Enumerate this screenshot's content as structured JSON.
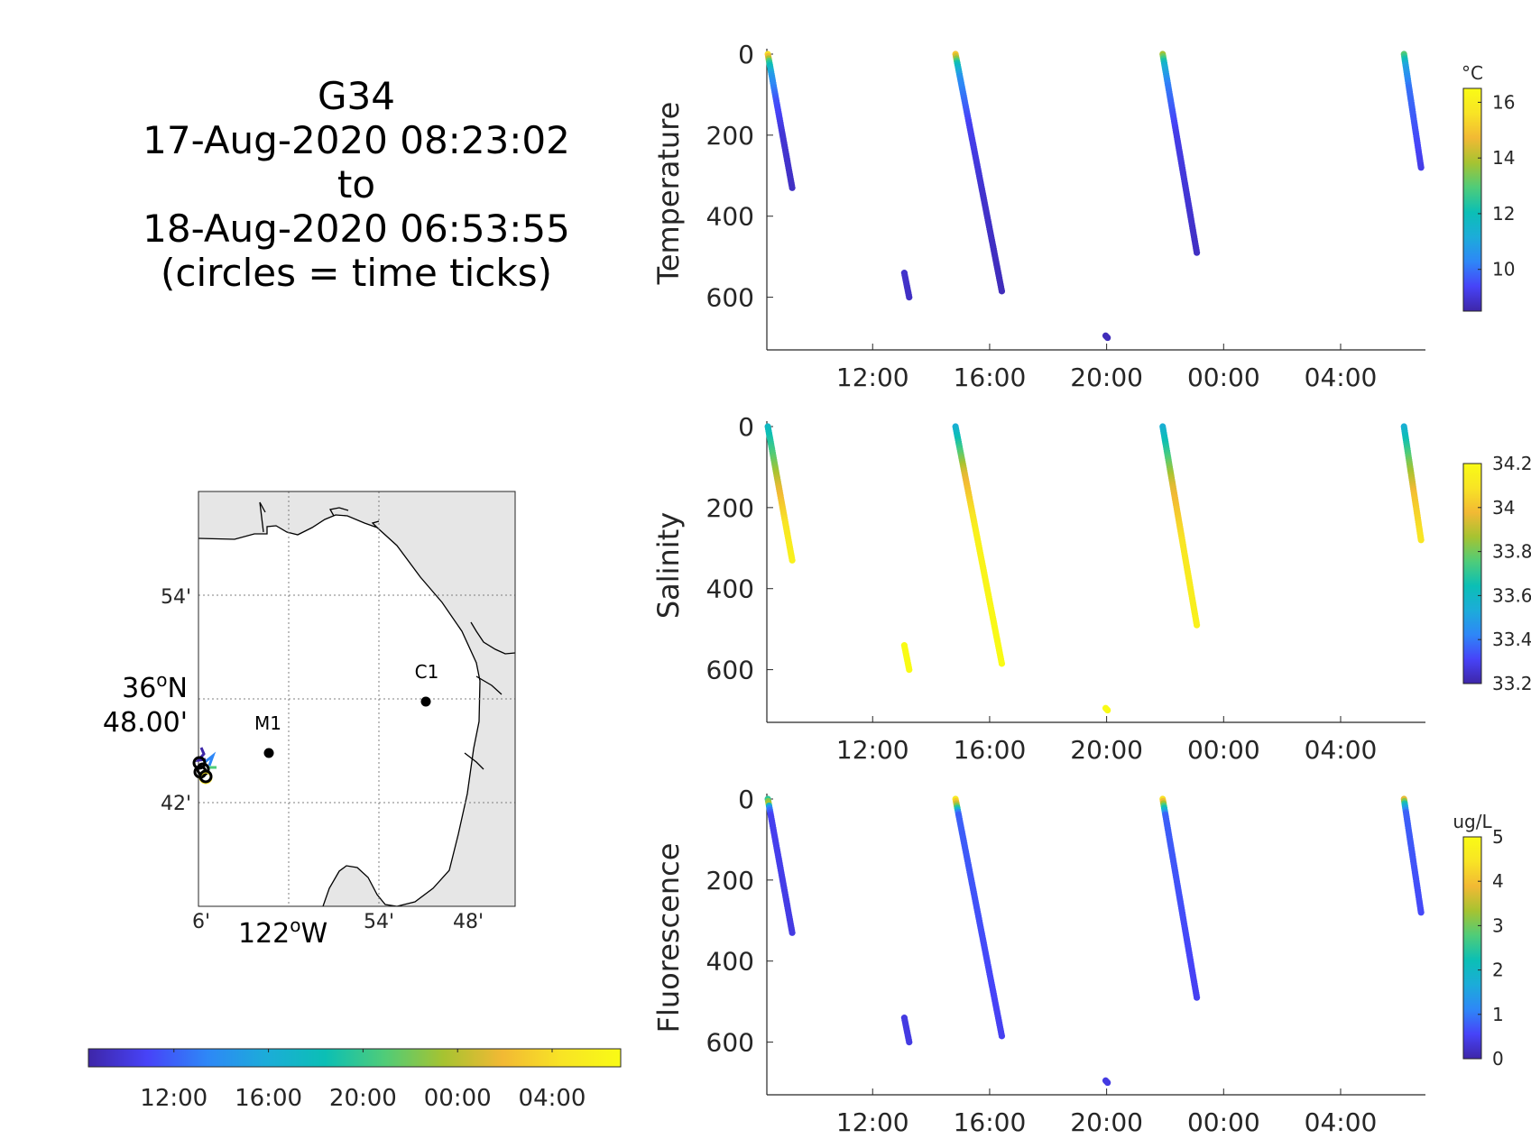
{
  "title": {
    "glider": "G34",
    "start": "17-Aug-2020 08:23:02",
    "to": "to",
    "end": "18-Aug-2020 06:53:55",
    "note": "(circles = time ticks)"
  },
  "map": {
    "lat_label_deg": "36",
    "lat_label_hemi": "N",
    "lat_label_min": "48.00'",
    "lon_label_deg": "122",
    "lon_label_hemi": "W",
    "lat_ticks": [
      "54'",
      "42'"
    ],
    "lon_ticks": [
      "6'",
      "54'",
      "48'"
    ],
    "stations": [
      {
        "name": "M1"
      },
      {
        "name": "C1"
      }
    ],
    "colors": {
      "land": "#e6e6e6",
      "water": "#ffffff",
      "coast": "#000000",
      "grid": "#7f7f7f"
    }
  },
  "time_colorbar": {
    "ticks": [
      "12:00",
      "16:00",
      "20:00",
      "00:00",
      "04:00"
    ]
  },
  "colormap": [
    "#3e26a8",
    "#4743f8",
    "#2e87f7",
    "#1cacd9",
    "#0bbfb5",
    "#4fcc79",
    "#a6c331",
    "#f2b934",
    "#f8e425",
    "#f9fb15"
  ],
  "chart_data": [
    {
      "type": "scatter",
      "ylabel": "Temperature",
      "x_ticks": [
        "12:00",
        "16:00",
        "20:00",
        "00:00",
        "04:00"
      ],
      "y_ticks": [
        "0",
        "200",
        "400",
        "600"
      ],
      "ylim": [
        0,
        730
      ],
      "y_reversed": true,
      "colorbar": {
        "unit": "°C",
        "ticks": [
          "10",
          "12",
          "14",
          "16"
        ],
        "range": [
          8.5,
          16.5
        ]
      },
      "profiles": [
        {
          "t0": "08:25",
          "t1": "09:15",
          "d0": 0,
          "d1": 330,
          "stops": [
            [
              0,
              15.5
            ],
            [
              0.06,
              12.5
            ],
            [
              0.15,
              10.8
            ],
            [
              0.35,
              9.6
            ],
            [
              0.6,
              9.0
            ],
            [
              1,
              8.8
            ]
          ]
        },
        {
          "t0": "13:05",
          "t1": "13:15",
          "d0": 540,
          "d1": 600,
          "stops": [
            [
              0,
              8.9
            ],
            [
              1,
              8.8
            ]
          ]
        },
        {
          "t0": "14:50",
          "t1": "16:25",
          "d0": 0,
          "d1": 585,
          "stops": [
            [
              0,
              15.0
            ],
            [
              0.04,
              12.0
            ],
            [
              0.1,
              10.5
            ],
            [
              0.3,
              9.3
            ],
            [
              0.6,
              8.9
            ],
            [
              1,
              8.7
            ]
          ]
        },
        {
          "t0": "19:58",
          "t1": "20:02",
          "d0": 695,
          "d1": 700,
          "stops": [
            [
              0,
              8.7
            ],
            [
              1,
              8.7
            ]
          ]
        },
        {
          "t0": "21:55",
          "t1": "23:05",
          "d0": 0,
          "d1": 490,
          "stops": [
            [
              0,
              13.8
            ],
            [
              0.05,
              11.5
            ],
            [
              0.15,
              10.2
            ],
            [
              0.4,
              9.2
            ],
            [
              1,
              8.8
            ]
          ]
        },
        {
          "t0": "06:10",
          "t1": "06:45",
          "d0": 0,
          "d1": 280,
          "stops": [
            [
              0,
              13.0
            ],
            [
              0.1,
              11.0
            ],
            [
              0.3,
              10.0
            ],
            [
              1,
              9.2
            ]
          ]
        }
      ]
    },
    {
      "type": "scatter",
      "ylabel": "Salinity",
      "x_ticks": [
        "12:00",
        "16:00",
        "20:00",
        "00:00",
        "04:00"
      ],
      "y_ticks": [
        "0",
        "200",
        "400",
        "600"
      ],
      "ylim": [
        0,
        730
      ],
      "y_reversed": true,
      "colorbar": {
        "unit": "",
        "ticks": [
          "34.2",
          "34",
          "33.8",
          "33.6",
          "33.4",
          "33.2"
        ],
        "range": [
          33.2,
          34.2
        ]
      },
      "profiles": [
        {
          "t0": "08:25",
          "t1": "09:15",
          "d0": 0,
          "d1": 330,
          "stops": [
            [
              0,
              33.6
            ],
            [
              0.2,
              33.75
            ],
            [
              0.45,
              33.95
            ],
            [
              0.75,
              34.1
            ],
            [
              1,
              34.15
            ]
          ]
        },
        {
          "t0": "13:05",
          "t1": "13:15",
          "d0": 540,
          "d1": 600,
          "stops": [
            [
              0,
              34.2
            ],
            [
              1,
              34.2
            ]
          ]
        },
        {
          "t0": "14:50",
          "t1": "16:25",
          "d0": 0,
          "d1": 585,
          "stops": [
            [
              0,
              33.55
            ],
            [
              0.08,
              33.7
            ],
            [
              0.2,
              33.95
            ],
            [
              0.45,
              34.15
            ],
            [
              1,
              34.2
            ]
          ]
        },
        {
          "t0": "19:58",
          "t1": "20:02",
          "d0": 695,
          "d1": 700,
          "stops": [
            [
              0,
              34.2
            ],
            [
              1,
              34.2
            ]
          ]
        },
        {
          "t0": "21:55",
          "t1": "23:05",
          "d0": 0,
          "d1": 490,
          "stops": [
            [
              0,
              33.55
            ],
            [
              0.12,
              33.7
            ],
            [
              0.3,
              33.95
            ],
            [
              0.6,
              34.1
            ],
            [
              1,
              34.15
            ]
          ]
        },
        {
          "t0": "06:10",
          "t1": "06:45",
          "d0": 0,
          "d1": 280,
          "stops": [
            [
              0,
              33.55
            ],
            [
              0.3,
              33.8
            ],
            [
              0.6,
              34.0
            ],
            [
              1,
              34.1
            ]
          ]
        }
      ]
    },
    {
      "type": "scatter",
      "ylabel": "Fluorescence",
      "x_ticks": [
        "12:00",
        "16:00",
        "20:00",
        "00:00",
        "04:00"
      ],
      "y_ticks": [
        "0",
        "200",
        "400",
        "600"
      ],
      "ylim": [
        0,
        730
      ],
      "y_reversed": true,
      "colorbar": {
        "unit": "ug/L",
        "ticks": [
          "5",
          "4",
          "3",
          "2",
          "1",
          "0"
        ],
        "range": [
          0,
          5
        ]
      },
      "profiles": [
        {
          "t0": "08:25",
          "t1": "09:15",
          "d0": 0,
          "d1": 330,
          "stops": [
            [
              0,
              2.5
            ],
            [
              0.03,
              3.6
            ],
            [
              0.06,
              1.2
            ],
            [
              0.12,
              0.5
            ],
            [
              1,
              0.4
            ]
          ]
        },
        {
          "t0": "13:05",
          "t1": "13:15",
          "d0": 540,
          "d1": 600,
          "stops": [
            [
              0,
              0.4
            ],
            [
              1,
              0.4
            ]
          ]
        },
        {
          "t0": "14:50",
          "t1": "16:25",
          "d0": 0,
          "d1": 585,
          "stops": [
            [
              0,
              4.6
            ],
            [
              0.03,
              3.0
            ],
            [
              0.06,
              0.8
            ],
            [
              1,
              0.5
            ]
          ]
        },
        {
          "t0": "19:58",
          "t1": "20:02",
          "d0": 695,
          "d1": 700,
          "stops": [
            [
              0,
              0.4
            ],
            [
              1,
              0.4
            ]
          ]
        },
        {
          "t0": "21:55",
          "t1": "23:05",
          "d0": 0,
          "d1": 490,
          "stops": [
            [
              0,
              4.4
            ],
            [
              0.04,
              2.5
            ],
            [
              0.08,
              0.8
            ],
            [
              1,
              0.5
            ]
          ]
        },
        {
          "t0": "06:10",
          "t1": "06:45",
          "d0": 0,
          "d1": 280,
          "stops": [
            [
              0,
              3.8
            ],
            [
              0.05,
              2.0
            ],
            [
              0.12,
              0.8
            ],
            [
              1,
              0.6
            ]
          ]
        }
      ]
    }
  ]
}
